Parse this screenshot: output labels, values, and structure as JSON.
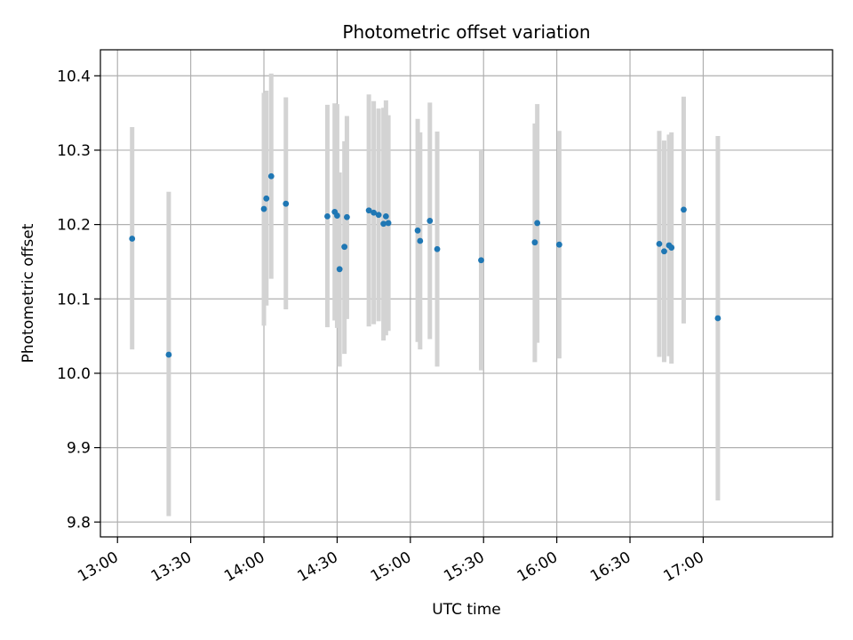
{
  "chart_data": {
    "type": "scatter",
    "title": "Photometric offset variation",
    "xlabel": "UTC time",
    "ylabel": "Photometric offset",
    "grid": true,
    "legend": "none",
    "xlim": [
      "12:53",
      "17:53"
    ],
    "ylim": [
      9.78,
      10.435
    ],
    "x_ticks": [
      "13:00",
      "13:30",
      "14:00",
      "14:30",
      "15:00",
      "15:30",
      "16:00",
      "16:30",
      "17:00"
    ],
    "y_ticks": [
      "9.8",
      "9.9",
      "10.0",
      "10.1",
      "10.2",
      "10.3",
      "10.4"
    ],
    "colors": {
      "point": "#1f77b4",
      "errorbar": "#d3d3d3",
      "grid": "#b0b0b0"
    },
    "series": [
      {
        "points": [
          {
            "t": "13:06",
            "y": 10.181,
            "lo": 10.032,
            "hi": 10.331
          },
          {
            "t": "13:21",
            "y": 10.025,
            "lo": 9.808,
            "hi": 10.244
          },
          {
            "t": "14:00",
            "y": 10.221,
            "lo": 10.064,
            "hi": 10.377
          },
          {
            "t": "14:01",
            "y": 10.235,
            "lo": 10.091,
            "hi": 10.38
          },
          {
            "t": "14:03",
            "y": 10.265,
            "lo": 10.127,
            "hi": 10.403
          },
          {
            "t": "14:09",
            "y": 10.228,
            "lo": 10.086,
            "hi": 10.371
          },
          {
            "t": "14:26",
            "y": 10.211,
            "lo": 10.062,
            "hi": 10.361
          },
          {
            "t": "14:29",
            "y": 10.217,
            "lo": 10.071,
            "hi": 10.363
          },
          {
            "t": "14:30",
            "y": 10.212,
            "lo": 10.061,
            "hi": 10.362
          },
          {
            "t": "14:31",
            "y": 10.14,
            "lo": 10.009,
            "hi": 10.27
          },
          {
            "t": "14:33",
            "y": 10.17,
            "lo": 10.026,
            "hi": 10.312
          },
          {
            "t": "14:34",
            "y": 10.21,
            "lo": 10.073,
            "hi": 10.346
          },
          {
            "t": "14:43",
            "y": 10.219,
            "lo": 10.063,
            "hi": 10.375
          },
          {
            "t": "14:45",
            "y": 10.216,
            "lo": 10.066,
            "hi": 10.366
          },
          {
            "t": "14:47",
            "y": 10.213,
            "lo": 10.07,
            "hi": 10.356
          },
          {
            "t": "14:49",
            "y": 10.201,
            "lo": 10.044,
            "hi": 10.357
          },
          {
            "t": "14:50",
            "y": 10.211,
            "lo": 10.051,
            "hi": 10.367
          },
          {
            "t": "14:51",
            "y": 10.202,
            "lo": 10.057,
            "hi": 10.347
          },
          {
            "t": "15:03",
            "y": 10.192,
            "lo": 10.042,
            "hi": 10.342
          },
          {
            "t": "15:04",
            "y": 10.178,
            "lo": 10.032,
            "hi": 10.324
          },
          {
            "t": "15:08",
            "y": 10.205,
            "lo": 10.046,
            "hi": 10.364
          },
          {
            "t": "15:11",
            "y": 10.167,
            "lo": 10.009,
            "hi": 10.325
          },
          {
            "t": "15:29",
            "y": 10.152,
            "lo": 10.004,
            "hi": 10.3
          },
          {
            "t": "15:51",
            "y": 10.176,
            "lo": 10.015,
            "hi": 10.336
          },
          {
            "t": "15:52",
            "y": 10.202,
            "lo": 10.041,
            "hi": 10.362
          },
          {
            "t": "16:01",
            "y": 10.173,
            "lo": 10.02,
            "hi": 10.326
          },
          {
            "t": "16:42",
            "y": 10.174,
            "lo": 10.022,
            "hi": 10.326
          },
          {
            "t": "16:44",
            "y": 10.164,
            "lo": 10.015,
            "hi": 10.313
          },
          {
            "t": "16:46",
            "y": 10.172,
            "lo": 10.023,
            "hi": 10.321
          },
          {
            "t": "16:47",
            "y": 10.169,
            "lo": 10.013,
            "hi": 10.324
          },
          {
            "t": "16:52",
            "y": 10.22,
            "lo": 10.067,
            "hi": 10.372
          },
          {
            "t": "17:06",
            "y": 10.074,
            "lo": 9.829,
            "hi": 10.319
          }
        ]
      }
    ]
  }
}
